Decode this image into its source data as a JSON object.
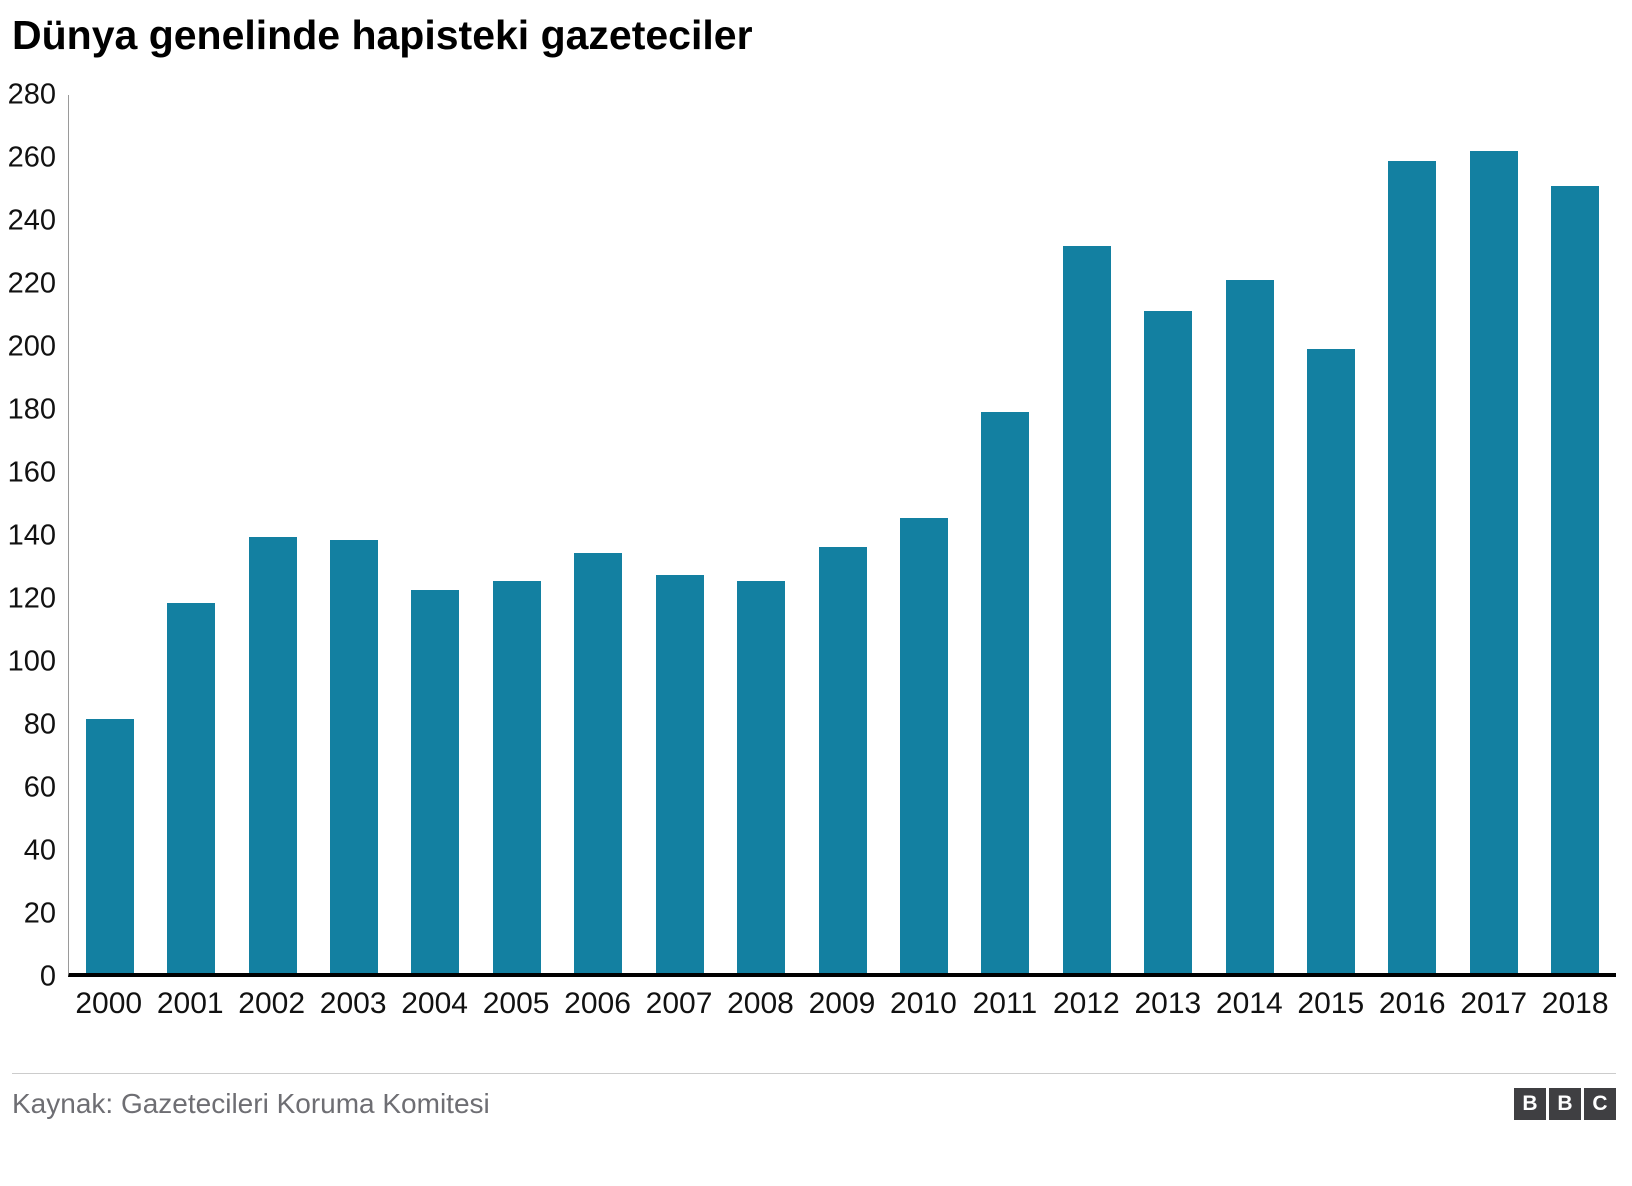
{
  "title": "Dünya genelinde hapisteki gazeteciler",
  "source": "Kaynak: Gazetecileri Koruma Komitesi",
  "logo_letters": [
    "B",
    "B",
    "C"
  ],
  "colors": {
    "bar": "#1380A1",
    "axis": "#000000",
    "y_axis_line": "#9a9a9a",
    "divider": "#cccccc",
    "source_text": "#6e6e73",
    "logo_bg": "#3f3f42"
  },
  "chart_data": {
    "type": "bar",
    "title": "Dünya genelinde hapisteki gazeteciler",
    "categories": [
      "2000",
      "2001",
      "2002",
      "2003",
      "2004",
      "2005",
      "2006",
      "2007",
      "2008",
      "2009",
      "2010",
      "2011",
      "2012",
      "2013",
      "2014",
      "2015",
      "2016",
      "2017",
      "2018"
    ],
    "values": [
      81,
      118,
      139,
      138,
      122,
      125,
      134,
      127,
      125,
      136,
      145,
      179,
      232,
      211,
      221,
      199,
      259,
      262,
      251
    ],
    "xlabel": "",
    "ylabel": "",
    "ylim": [
      0,
      280
    ],
    "ytick_step": 20,
    "grid": false,
    "legend": false
  }
}
